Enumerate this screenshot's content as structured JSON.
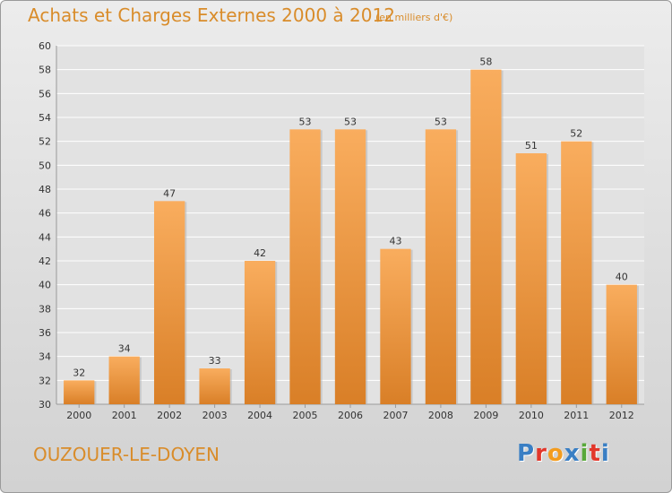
{
  "header": {
    "title": "Achats et Charges Externes 2000 à 2012",
    "unit": "(en milliers d'€)"
  },
  "footer": {
    "commune": "OUZOUER-LE-DOYEN",
    "logo_text": "Proxiti",
    "logo_colors": [
      "#3a7fc4",
      "#e2372b",
      "#f39c1e",
      "#3a7fc4",
      "#58a83a",
      "#e2372b",
      "#3a7fc4"
    ]
  },
  "colors": {
    "bar_light": "#f9ad5e",
    "bar_dark": "#d97f27",
    "grid": "#ffffff",
    "axis_text": "#333333",
    "accent": "#d98c2a"
  },
  "chart_data": {
    "type": "bar",
    "categories": [
      "2000",
      "2001",
      "2002",
      "2003",
      "2004",
      "2005",
      "2006",
      "2007",
      "2008",
      "2009",
      "2010",
      "2011",
      "2012"
    ],
    "values": [
      32,
      34,
      47,
      33,
      42,
      53,
      53,
      43,
      53,
      58,
      51,
      52,
      40
    ],
    "title": "Achats et Charges Externes 2000 à 2012",
    "ylim": [
      30,
      60
    ],
    "yticks": [
      30,
      32,
      34,
      36,
      38,
      40,
      42,
      44,
      46,
      48,
      50,
      52,
      54,
      56,
      58,
      60
    ],
    "grid": true,
    "data_labels": true
  }
}
